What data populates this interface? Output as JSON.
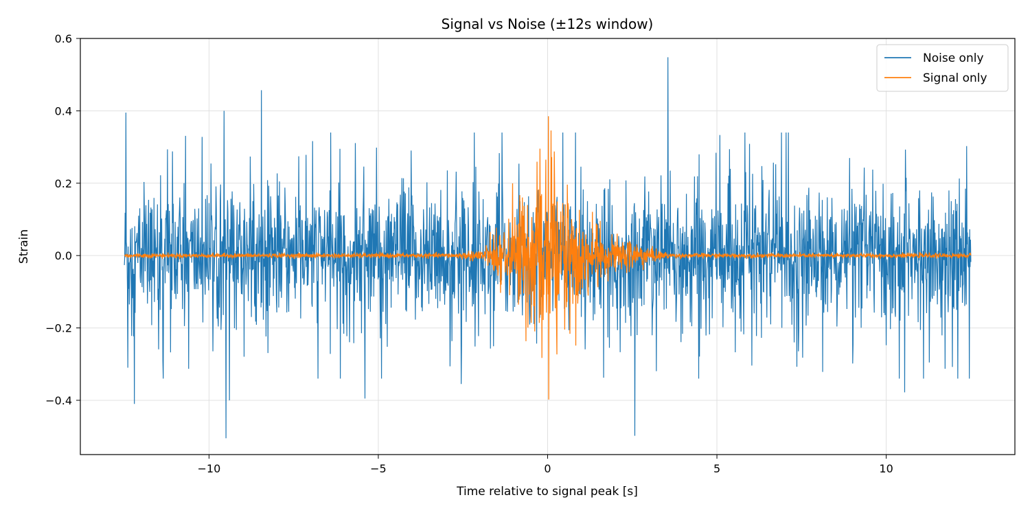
{
  "chart_data": {
    "type": "line",
    "title": "Signal vs Noise (±12s window)",
    "xlabel": "Time relative to signal peak [s]",
    "ylabel": "Strain",
    "xlim": [
      -13.8,
      13.8
    ],
    "ylim": [
      -0.55,
      0.6
    ],
    "x_range": [
      -12.5,
      12.5
    ],
    "xticks": [
      -10,
      -5,
      0,
      5,
      10
    ],
    "xtick_labels": [
      "−10",
      "−5",
      "0",
      "5",
      "10"
    ],
    "yticks": [
      -0.4,
      -0.2,
      0.0,
      0.2,
      0.4,
      0.6
    ],
    "ytick_labels": [
      "−0.4",
      "−0.2",
      "0.0",
      "0.2",
      "0.4",
      "0.6"
    ],
    "grid": true,
    "legend_position": "top-right",
    "series": [
      {
        "name": "Noise only",
        "color": "#1f77b4",
        "description_points": [
          [
            -12.45,
            0.395
          ],
          [
            -12.4,
            -0.31
          ],
          [
            -12.2,
            -0.41
          ],
          [
            -9.5,
            -0.505
          ],
          [
            -9.55,
            0.4
          ],
          [
            -8.45,
            0.457
          ],
          [
            -9.4,
            -0.4
          ],
          [
            3.55,
            0.548
          ],
          [
            2.58,
            -0.498
          ],
          [
            10.55,
            -0.378
          ],
          [
            -5.4,
            -0.395
          ],
          [
            -2.55,
            -0.355
          ],
          [
            -10.2,
            0.328
          ]
        ],
        "amplitude_typical": 0.15
      },
      {
        "name": "Signal only",
        "color": "#ff7f0e",
        "peaks": [
          [
            0.02,
            0.385
          ],
          [
            0.03,
            -0.398
          ],
          [
            -0.05,
            0.265
          ],
          [
            0.07,
            -0.16
          ]
        ],
        "amplitude_envelope": 0.12
      }
    ]
  }
}
